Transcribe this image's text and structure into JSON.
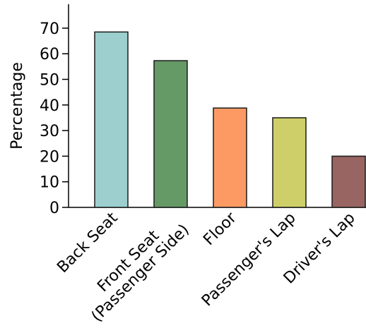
{
  "chart_data": {
    "type": "bar",
    "title": "",
    "xlabel": "",
    "ylabel": "Percentage",
    "ylim": [
      0,
      80
    ],
    "yticks": [
      0,
      10,
      20,
      30,
      40,
      50,
      60,
      70
    ],
    "grid": false,
    "categories": [
      [
        "Back Seat"
      ],
      [
        "Front Seat",
        "(Passenger Side)"
      ],
      [
        "Floor"
      ],
      [
        "Passenger's Lap"
      ],
      [
        "Driver's Lap"
      ]
    ],
    "values": [
      68.5,
      57.3,
      38.8,
      35,
      20
    ],
    "colors": [
      "#9dcfcf",
      "#659966",
      "#fd9a63",
      "#cfcf6a",
      "#986562"
    ]
  }
}
